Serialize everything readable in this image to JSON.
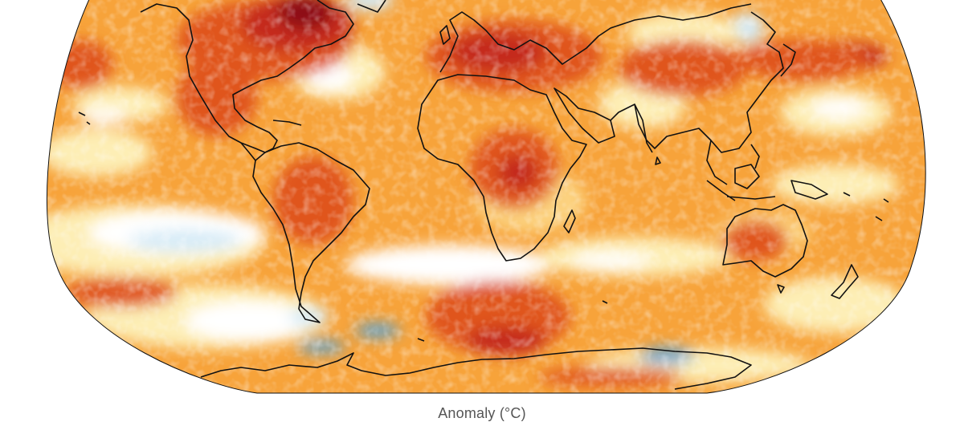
{
  "figure": {
    "colorbar_label": "Anomaly (°C)"
  },
  "palette": {
    "ocean_base": "#f7a33a",
    "warm_light": "#fcd27f",
    "warm_pale": "#fdeeb5",
    "neutral": "#ffffff",
    "cool_light": "#d6ebf7",
    "cool": "#8fc3e6",
    "cool_strong": "#5aa5d8",
    "warm_strong": "#e0541e",
    "warm_deep": "#c52a1a",
    "hot": "#8e1015",
    "coastline": "#111111"
  }
}
